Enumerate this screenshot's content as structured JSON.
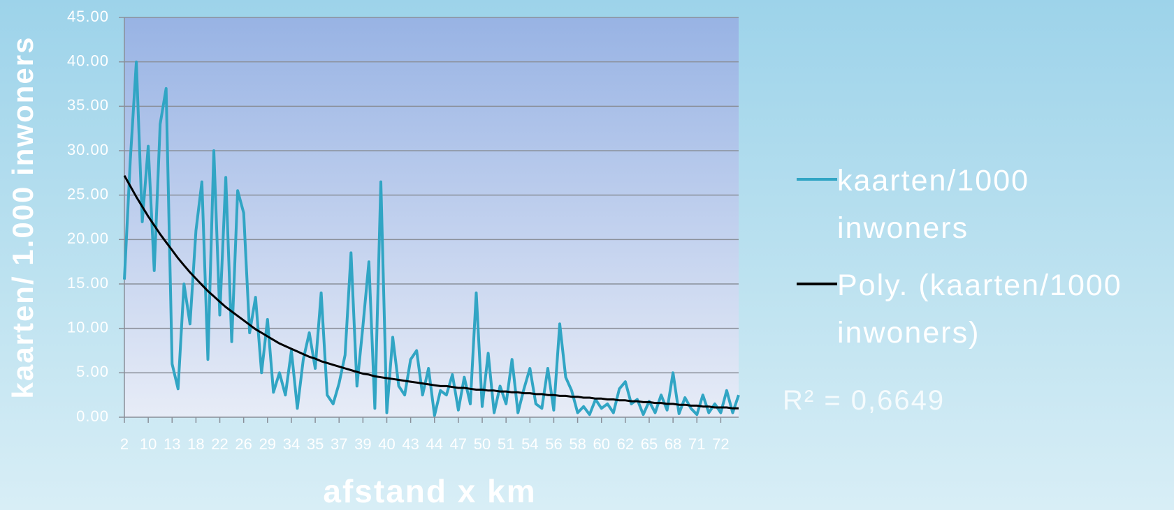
{
  "chart_data": {
    "type": "line",
    "title_y": "kaarten/ 1.000 inwoners",
    "title_x": "afstand x km",
    "annotation": "R² = 0,6649",
    "categories": [
      "2",
      null,
      null,
      null,
      "10",
      null,
      null,
      null,
      "13",
      null,
      null,
      null,
      "18",
      null,
      null,
      null,
      "22",
      null,
      null,
      null,
      "26",
      null,
      null,
      null,
      "29",
      null,
      null,
      null,
      "34",
      null,
      null,
      null,
      "35",
      null,
      null,
      null,
      "37",
      null,
      null,
      null,
      "39",
      null,
      null,
      null,
      "40",
      null,
      null,
      null,
      "43",
      null,
      null,
      null,
      "44",
      null,
      null,
      null,
      "47",
      null,
      null,
      null,
      "50",
      null,
      null,
      null,
      "51",
      null,
      null,
      null,
      "54",
      null,
      null,
      null,
      "56",
      null,
      null,
      null,
      "58",
      null,
      null,
      null,
      "60",
      null,
      null,
      null,
      "62",
      null,
      null,
      null,
      "65",
      null,
      null,
      null,
      "68",
      null,
      null,
      null,
      "71",
      null,
      null,
      null,
      "72",
      null,
      null,
      null
    ],
    "series": [
      {
        "name": "kaarten/1000 inwoners",
        "color": "#31a5c4",
        "width": 4,
        "values": [
          15.5,
          29,
          40,
          22,
          30.5,
          16.5,
          33,
          37,
          6,
          3.2,
          15,
          10.5,
          21,
          26.5,
          6.5,
          30,
          11.5,
          27,
          8.5,
          25.5,
          23,
          9.5,
          13.5,
          5,
          11,
          2.8,
          5,
          2.5,
          7.5,
          1,
          6.5,
          9.5,
          5.5,
          14,
          2.5,
          1.5,
          3.8,
          7,
          18.5,
          3.5,
          10.3,
          17.5,
          1,
          26.5,
          0.5,
          9,
          3.5,
          2.5,
          6.5,
          7.5,
          2.5,
          5.5,
          0.2,
          3,
          2.5,
          4.8,
          0.8,
          4.5,
          1.5,
          14,
          1.2,
          7.2,
          0.5,
          3.5,
          1.5,
          6.5,
          0.5,
          3.2,
          5.5,
          1.5,
          1,
          5.5,
          0.8,
          10.5,
          4.5,
          3,
          0.5,
          1.2,
          0.3,
          2,
          1,
          1.5,
          0.5,
          3.2,
          4,
          1.5,
          2,
          0.3,
          1.8,
          0.5,
          2.5,
          0.8,
          5,
          0.4,
          2.2,
          1,
          0.3,
          2.5,
          0.5,
          1.5,
          0.5,
          3,
          0.5,
          2.5
        ]
      },
      {
        "name": "Poly. (kaarten/1000 inwoners)",
        "color": "#000000",
        "width": 3,
        "values": [
          27.2,
          26.0,
          24.8,
          23.7,
          22.6,
          21.6,
          20.6,
          19.7,
          18.8,
          17.9,
          17.1,
          16.3,
          15.6,
          14.9,
          14.2,
          13.6,
          13.0,
          12.4,
          11.9,
          11.4,
          10.9,
          10.4,
          9.9,
          9.5,
          9.1,
          8.7,
          8.3,
          8.0,
          7.7,
          7.4,
          7.1,
          6.8,
          6.6,
          6.3,
          6.1,
          5.9,
          5.7,
          5.5,
          5.3,
          5.1,
          4.9,
          4.8,
          4.6,
          4.5,
          4.4,
          4.3,
          4.2,
          4.1,
          4.0,
          3.9,
          3.8,
          3.7,
          3.6,
          3.5,
          3.5,
          3.4,
          3.3,
          3.3,
          3.2,
          3.1,
          3.1,
          3.0,
          3.0,
          2.9,
          2.9,
          2.8,
          2.8,
          2.7,
          2.7,
          2.6,
          2.6,
          2.5,
          2.5,
          2.4,
          2.4,
          2.3,
          2.3,
          2.2,
          2.2,
          2.1,
          2.1,
          2.0,
          2.0,
          1.9,
          1.9,
          1.8,
          1.8,
          1.7,
          1.7,
          1.6,
          1.6,
          1.5,
          1.5,
          1.4,
          1.4,
          1.3,
          1.3,
          1.2,
          1.2,
          1.1,
          1.1,
          1.1,
          1.0,
          1.0
        ]
      }
    ],
    "ylim": [
      0,
      45
    ],
    "yticks": [
      {
        "value": 0,
        "label": "0.00"
      },
      {
        "value": 5,
        "label": "5.00"
      },
      {
        "value": 10,
        "label": "10.00"
      },
      {
        "value": 15,
        "label": "15.00"
      },
      {
        "value": 20,
        "label": "20.00"
      },
      {
        "value": 25,
        "label": "25.00"
      },
      {
        "value": 30,
        "label": "30.00"
      },
      {
        "value": 35,
        "label": "35.00"
      },
      {
        "value": 40,
        "label": "40.00"
      },
      {
        "value": 45,
        "label": "45.00"
      }
    ],
    "grid": true,
    "legend": "right"
  }
}
